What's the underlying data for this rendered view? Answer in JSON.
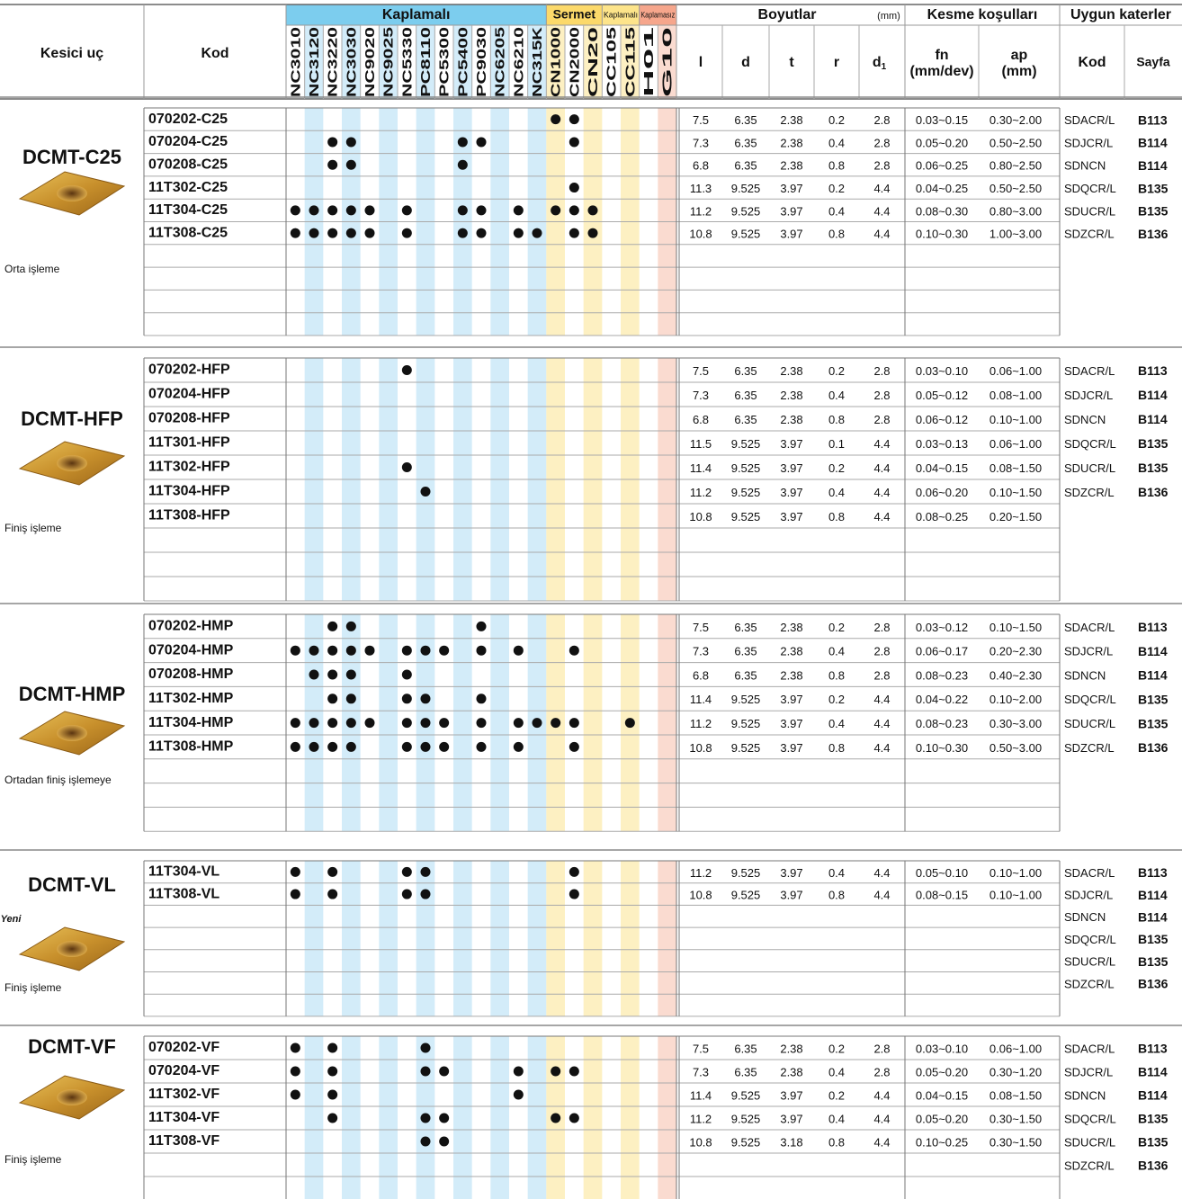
{
  "header": {
    "insert": "Kesici uç",
    "code": "Kod",
    "coated": "Kaplamalı",
    "cermet": "Sermet",
    "coated_small": "Kaplamalı",
    "uncoated": "Kaplamasız",
    "dimensions": "Boyutlar",
    "dimensions_unit": "(mm)",
    "cutting": "Kesme koşulları",
    "holders": "Uygun katerler",
    "dims": [
      "l",
      "d",
      "t",
      "r"
    ],
    "d1": {
      "text": "d",
      "sub": "1"
    },
    "fn": "fn",
    "fn_unit": "(mm/dev)",
    "ap": "ap",
    "ap_unit": "(mm)",
    "holder_code": "Kod",
    "page": "Sayfa"
  },
  "grades": [
    "NC3010",
    "NC3120",
    "NC3220",
    "NC3030",
    "NC9020",
    "NC9025",
    "NC5330",
    "PC8110",
    "PC5300",
    "PC5400",
    "PC9030",
    "NC6205",
    "NC6210",
    "NC315K",
    "CN1000",
    "CN2000",
    "CN20",
    "CC105",
    "CC115",
    "H01",
    "G10"
  ],
  "groups": [
    {
      "name": "DCMT-C25",
      "description": "Orta işleme",
      "rows": [
        {
          "code": "070202-C25",
          "grades": [
            "CN1000",
            "CN2000"
          ],
          "l": 7.5,
          "d": 6.35,
          "t": 2.38,
          "r": 0.2,
          "d1": 2.8,
          "fn": "0.03~0.15",
          "ap": "0.30~2.00"
        },
        {
          "code": "070204-C25",
          "grades": [
            "NC3220",
            "NC3030",
            "PC5400",
            "PC9030",
            "CN2000"
          ],
          "l": 7.3,
          "d": 6.35,
          "t": 2.38,
          "r": 0.4,
          "d1": 2.8,
          "fn": "0.05~0.20",
          "ap": "0.50~2.50"
        },
        {
          "code": "070208-C25",
          "grades": [
            "NC3220",
            "NC3030",
            "PC5400"
          ],
          "l": 6.8,
          "d": 6.35,
          "t": 2.38,
          "r": 0.8,
          "d1": 2.8,
          "fn": "0.06~0.25",
          "ap": "0.80~2.50"
        },
        {
          "code": "11T302-C25",
          "grades": [
            "CN2000"
          ],
          "l": 11.3,
          "d": 9.525,
          "t": 3.97,
          "r": 0.2,
          "d1": 4.4,
          "fn": "0.04~0.25",
          "ap": "0.50~2.50"
        },
        {
          "code": "11T304-C25",
          "grades": [
            "NC3010",
            "NC3120",
            "NC3220",
            "NC3030",
            "NC9020",
            "NC5330",
            "PC5400",
            "PC9030",
            "NC6210",
            "CN1000",
            "CN2000",
            "CN20"
          ],
          "l": 11.2,
          "d": 9.525,
          "t": 3.97,
          "r": 0.4,
          "d1": 4.4,
          "fn": "0.08~0.30",
          "ap": "0.80~3.00"
        },
        {
          "code": "11T308-C25",
          "grades": [
            "NC3010",
            "NC3120",
            "NC3220",
            "NC3030",
            "NC9020",
            "NC5330",
            "PC5400",
            "PC9030",
            "NC6210",
            "NC315K",
            "CN2000",
            "CN20"
          ],
          "l": 10.8,
          "d": 9.525,
          "t": 3.97,
          "r": 0.8,
          "d1": 4.4,
          "fn": "0.10~0.30",
          "ap": "1.00~3.00"
        }
      ],
      "holders": [
        {
          "code": "SDACR/L",
          "page": "B113"
        },
        {
          "code": "SDJCR/L",
          "page": "B114"
        },
        {
          "code": "SDNCN",
          "page": "B114"
        },
        {
          "code": "SDQCR/L",
          "page": "B135"
        },
        {
          "code": "SDUCR/L",
          "page": "B135"
        },
        {
          "code": "SDZCR/L",
          "page": "B136"
        }
      ]
    },
    {
      "name": "DCMT-HFP",
      "description": "Finiş işleme",
      "rows": [
        {
          "code": "070202-HFP",
          "grades": [
            "NC5330"
          ],
          "l": 7.5,
          "d": 6.35,
          "t": 2.38,
          "r": 0.2,
          "d1": 2.8,
          "fn": "0.03~0.10",
          "ap": "0.06~1.00"
        },
        {
          "code": "070204-HFP",
          "grades": [],
          "l": 7.3,
          "d": 6.35,
          "t": 2.38,
          "r": 0.4,
          "d1": 2.8,
          "fn": "0.05~0.12",
          "ap": "0.08~1.00"
        },
        {
          "code": "070208-HFP",
          "grades": [],
          "l": 6.8,
          "d": 6.35,
          "t": 2.38,
          "r": 0.8,
          "d1": 2.8,
          "fn": "0.06~0.12",
          "ap": "0.10~1.00"
        },
        {
          "code": "11T301-HFP",
          "grades": [],
          "l": 11.5,
          "d": 9.525,
          "t": 3.97,
          "r": 0.1,
          "d1": 4.4,
          "fn": "0.03~0.13",
          "ap": "0.06~1.00"
        },
        {
          "code": "11T302-HFP",
          "grades": [
            "NC5330"
          ],
          "l": 11.4,
          "d": 9.525,
          "t": 3.97,
          "r": 0.2,
          "d1": 4.4,
          "fn": "0.04~0.15",
          "ap": "0.08~1.50"
        },
        {
          "code": "11T304-HFP",
          "grades": [
            "PC8110"
          ],
          "l": 11.2,
          "d": 9.525,
          "t": 3.97,
          "r": 0.4,
          "d1": 4.4,
          "fn": "0.06~0.20",
          "ap": "0.10~1.50"
        },
        {
          "code": "11T308-HFP",
          "grades": [],
          "l": 10.8,
          "d": 9.525,
          "t": 3.97,
          "r": 0.8,
          "d1": 4.4,
          "fn": "0.08~0.25",
          "ap": "0.20~1.50"
        }
      ],
      "holders": [
        {
          "code": "SDACR/L",
          "page": "B113"
        },
        {
          "code": "SDJCR/L",
          "page": "B114"
        },
        {
          "code": "SDNCN",
          "page": "B114"
        },
        {
          "code": "SDQCR/L",
          "page": "B135"
        },
        {
          "code": "SDUCR/L",
          "page": "B135"
        },
        {
          "code": "SDZCR/L",
          "page": "B136"
        }
      ]
    },
    {
      "name": "DCMT-HMP",
      "description": "Ortadan finiş işlemeye",
      "rows": [
        {
          "code": "070202-HMP",
          "grades": [
            "NC3220",
            "NC3030",
            "PC9030"
          ],
          "l": 7.5,
          "d": 6.35,
          "t": 2.38,
          "r": 0.2,
          "d1": 2.8,
          "fn": "0.03~0.12",
          "ap": "0.10~1.50"
        },
        {
          "code": "070204-HMP",
          "grades": [
            "NC3010",
            "NC3120",
            "NC3220",
            "NC3030",
            "NC9020",
            "NC5330",
            "PC8110",
            "PC5300",
            "PC9030",
            "NC6210",
            "CN2000"
          ],
          "l": 7.3,
          "d": 6.35,
          "t": 2.38,
          "r": 0.4,
          "d1": 2.8,
          "fn": "0.06~0.17",
          "ap": "0.20~2.30"
        },
        {
          "code": "070208-HMP",
          "grades": [
            "NC3120",
            "NC3220",
            "NC3030",
            "NC5330"
          ],
          "l": 6.8,
          "d": 6.35,
          "t": 2.38,
          "r": 0.8,
          "d1": 2.8,
          "fn": "0.08~0.23",
          "ap": "0.40~2.30"
        },
        {
          "code": "11T302-HMP",
          "grades": [
            "NC3220",
            "NC3030",
            "NC5330",
            "PC8110",
            "PC9030"
          ],
          "l": 11.4,
          "d": 9.525,
          "t": 3.97,
          "r": 0.2,
          "d1": 4.4,
          "fn": "0.04~0.22",
          "ap": "0.10~2.00"
        },
        {
          "code": "11T304-HMP",
          "grades": [
            "NC3010",
            "NC3120",
            "NC3220",
            "NC3030",
            "NC9020",
            "NC5330",
            "PC8110",
            "PC5300",
            "PC9030",
            "NC6210",
            "NC315K",
            "CN1000",
            "CN2000",
            "CC115"
          ],
          "l": 11.2,
          "d": 9.525,
          "t": 3.97,
          "r": 0.4,
          "d1": 4.4,
          "fn": "0.08~0.23",
          "ap": "0.30~3.00"
        },
        {
          "code": "11T308-HMP",
          "grades": [
            "NC3010",
            "NC3120",
            "NC3220",
            "NC3030",
            "NC5330",
            "PC8110",
            "PC5300",
            "PC9030",
            "NC6210",
            "CN2000"
          ],
          "l": 10.8,
          "d": 9.525,
          "t": 3.97,
          "r": 0.8,
          "d1": 4.4,
          "fn": "0.10~0.30",
          "ap": "0.50~3.00"
        }
      ],
      "holders": [
        {
          "code": "SDACR/L",
          "page": "B113"
        },
        {
          "code": "SDJCR/L",
          "page": "B114"
        },
        {
          "code": "SDNCN",
          "page": "B114"
        },
        {
          "code": "SDQCR/L",
          "page": "B135"
        },
        {
          "code": "SDUCR/L",
          "page": "B135"
        },
        {
          "code": "SDZCR/L",
          "page": "B136"
        }
      ]
    },
    {
      "name": "DCMT-VL",
      "description": "Finiş işleme",
      "badge": "Yeni",
      "rows": [
        {
          "code": "11T304-VL",
          "grades": [
            "NC3010",
            "NC3220",
            "NC5330",
            "PC8110",
            "CN2000"
          ],
          "l": 11.2,
          "d": 9.525,
          "t": 3.97,
          "r": 0.4,
          "d1": 4.4,
          "fn": "0.05~0.10",
          "ap": "0.10~1.00"
        },
        {
          "code": "11T308-VL",
          "grades": [
            "NC3010",
            "NC3220",
            "NC5330",
            "PC8110",
            "CN2000"
          ],
          "l": 10.8,
          "d": 9.525,
          "t": 3.97,
          "r": 0.8,
          "d1": 4.4,
          "fn": "0.08~0.15",
          "ap": "0.10~1.00"
        }
      ],
      "holders": [
        {
          "code": "SDACR/L",
          "page": "B113"
        },
        {
          "code": "SDJCR/L",
          "page": "B114"
        },
        {
          "code": "SDNCN",
          "page": "B114"
        },
        {
          "code": "SDQCR/L",
          "page": "B135"
        },
        {
          "code": "SDUCR/L",
          "page": "B135"
        },
        {
          "code": "SDZCR/L",
          "page": "B136"
        }
      ]
    },
    {
      "name": "DCMT-VF",
      "description": "Finiş işleme",
      "rows": [
        {
          "code": "070202-VF",
          "grades": [
            "NC3010",
            "NC3220",
            "PC8110"
          ],
          "l": 7.5,
          "d": 6.35,
          "t": 2.38,
          "r": 0.2,
          "d1": 2.8,
          "fn": "0.03~0.10",
          "ap": "0.06~1.00"
        },
        {
          "code": "070204-VF",
          "grades": [
            "NC3010",
            "NC3220",
            "PC8110",
            "PC5300",
            "NC6210",
            "CN1000",
            "CN2000"
          ],
          "l": 7.3,
          "d": 6.35,
          "t": 2.38,
          "r": 0.4,
          "d1": 2.8,
          "fn": "0.05~0.20",
          "ap": "0.30~1.20"
        },
        {
          "code": "11T302-VF",
          "grades": [
            "NC3010",
            "NC3220",
            "NC6210"
          ],
          "l": 11.4,
          "d": 9.525,
          "t": 3.97,
          "r": 0.2,
          "d1": 4.4,
          "fn": "0.04~0.15",
          "ap": "0.08~1.50"
        },
        {
          "code": "11T304-VF",
          "grades": [
            "NC3220",
            "PC8110",
            "PC5300",
            "CN1000",
            "CN2000"
          ],
          "l": 11.2,
          "d": 9.525,
          "t": 3.97,
          "r": 0.4,
          "d1": 4.4,
          "fn": "0.05~0.20",
          "ap": "0.30~1.50"
        },
        {
          "code": "11T308-VF",
          "grades": [
            "PC8110",
            "PC5300"
          ],
          "l": 10.8,
          "d": 9.525,
          "t": 3.18,
          "r": 0.8,
          "d1": 4.4,
          "fn": "0.10~0.25",
          "ap": "0.30~1.50"
        }
      ],
      "holders": [
        {
          "code": "SDACR/L",
          "page": "B113"
        },
        {
          "code": "SDJCR/L",
          "page": "B114"
        },
        {
          "code": "SDNCN",
          "page": "B114"
        },
        {
          "code": "SDQCR/L",
          "page": "B135"
        },
        {
          "code": "SDUCR/L",
          "page": "B135"
        },
        {
          "code": "SDZCR/L",
          "page": "B136"
        }
      ]
    }
  ]
}
